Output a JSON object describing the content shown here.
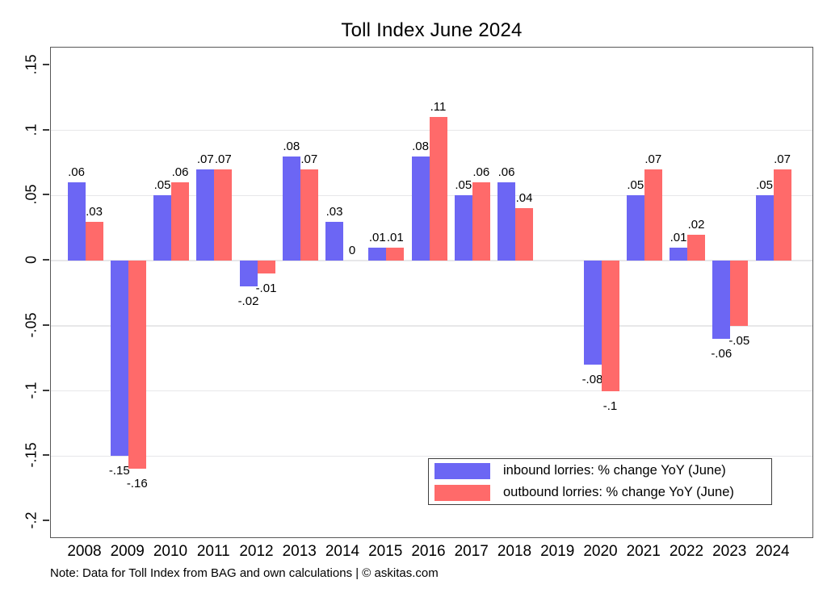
{
  "title": "Toll Index June 2024",
  "note": "Note: Data for Toll Index from BAG and own calculations | © askitas.com",
  "colors": {
    "inbound": "#6c66f4",
    "outbound": "#ff6a6a",
    "grid": "#e7e7e9",
    "frame": "#585858"
  },
  "chart_data": {
    "type": "bar",
    "title": "Toll Index June 2024",
    "categories": [
      "2008",
      "2009",
      "2010",
      "2011",
      "2012",
      "2013",
      "2014",
      "2015",
      "2016",
      "2017",
      "2018",
      "2019",
      "2020",
      "2021",
      "2022",
      "2023",
      "2024"
    ],
    "series": [
      {
        "name": "inbound lorries: % change YoY (June)",
        "color": "#6c66f4",
        "values": [
          0.06,
          -0.15,
          0.05,
          0.07,
          -0.02,
          0.08,
          0.03,
          0.01,
          0.08,
          0.05,
          0.06,
          null,
          -0.08,
          0.05,
          0.01,
          -0.06,
          0.05
        ],
        "value_labels": [
          ".06",
          "-.15",
          ".05",
          ".07",
          "-.02",
          ".08",
          ".03",
          ".01",
          ".08",
          ".05",
          ".06",
          null,
          "-.08",
          ".05",
          ".01",
          "-.06",
          ".05"
        ]
      },
      {
        "name": "outbound lorries: % change YoY (June)",
        "color": "#ff6a6a",
        "values": [
          0.03,
          -0.16,
          0.06,
          0.07,
          -0.01,
          0.07,
          0,
          0.01,
          0.11,
          0.06,
          0.04,
          null,
          -0.1,
          0.07,
          0.02,
          -0.05,
          0.07
        ],
        "value_labels": [
          ".03",
          "-.16",
          ".06",
          ".07",
          "-.01",
          ".07",
          "0",
          ".01",
          ".11",
          ".06",
          ".04",
          null,
          "-.1",
          ".07",
          ".02",
          "-.05",
          ".07"
        ]
      }
    ],
    "ylim": [
      -0.2,
      0.15
    ],
    "ytick_values": [
      0.15,
      0.1,
      0.05,
      0,
      -0.05,
      -0.1,
      -0.15,
      -0.2
    ],
    "ytick_labels": [
      ".15",
      ".1",
      ".05",
      "0",
      "-.05",
      "-.1",
      "-.15",
      "-.2"
    ],
    "grid": true,
    "legend_position": "inside-bottom-right"
  }
}
